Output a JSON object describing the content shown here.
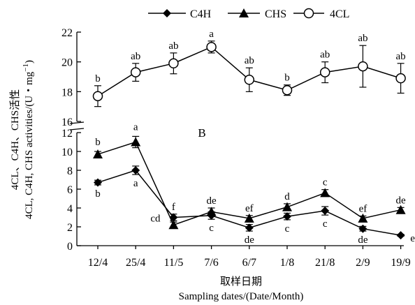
{
  "chart_data": {
    "type": "line",
    "panel_label": "B",
    "title": "",
    "ylabel_cn": "4CL、C4H、CHS活性",
    "ylabel_en": "4CL, C4H, CHS activities/(U・mg",
    "ylabel_en_sup": "−1",
    "ylabel_en_close": ")",
    "xlabel_cn": "取样日期",
    "xlabel_en": "Sampling dates/(Date/Month)",
    "categories": [
      "12/4",
      "25/4",
      "11/5",
      "7/6",
      "6/7",
      "1/8",
      "21/8",
      "2/9",
      "19/9"
    ],
    "y_axis_broken": true,
    "ylim_lower": [
      0,
      12
    ],
    "ylim_upper": [
      16,
      22
    ],
    "yticks_lower": [
      "0",
      "2",
      "4",
      "6",
      "8",
      "10",
      "12"
    ],
    "yticks_upper": [
      "16",
      "18",
      "20",
      "22"
    ],
    "grid": false,
    "legend_position": "top",
    "series": [
      {
        "name": "C4H",
        "marker": "diamond",
        "values": [
          6.7,
          8.0,
          3.0,
          3.2,
          1.9,
          3.1,
          3.7,
          1.8,
          1.1
        ],
        "errors": [
          0.25,
          0.45,
          0.35,
          0.4,
          0.35,
          0.35,
          0.45,
          0.25,
          0.1
        ],
        "letters": [
          "b",
          "a",
          "cd",
          "c",
          "de",
          "c",
          "c",
          "de",
          "e"
        ]
      },
      {
        "name": "CHS",
        "marker": "triangle",
        "values": [
          9.7,
          11.0,
          2.2,
          3.6,
          2.9,
          4.1,
          5.6,
          2.9,
          3.8
        ],
        "errors": [
          0.3,
          0.6,
          0.3,
          0.4,
          0.3,
          0.35,
          0.35,
          0.25,
          0.25
        ],
        "letters": [
          "b",
          "a",
          "f",
          "de",
          "ef",
          "d",
          "c",
          "ef",
          "de"
        ]
      },
      {
        "name": "4CL",
        "marker": "open-circle",
        "values": [
          17.7,
          19.3,
          19.9,
          21.0,
          18.8,
          18.1,
          19.3,
          19.7,
          18.9
        ],
        "errors": [
          0.7,
          0.6,
          0.7,
          0.4,
          0.8,
          0.35,
          0.7,
          1.4,
          1.0
        ],
        "letters": [
          "b",
          "ab",
          "ab",
          "a",
          "ab",
          "b",
          "ab",
          "ab",
          "ab"
        ]
      }
    ]
  }
}
